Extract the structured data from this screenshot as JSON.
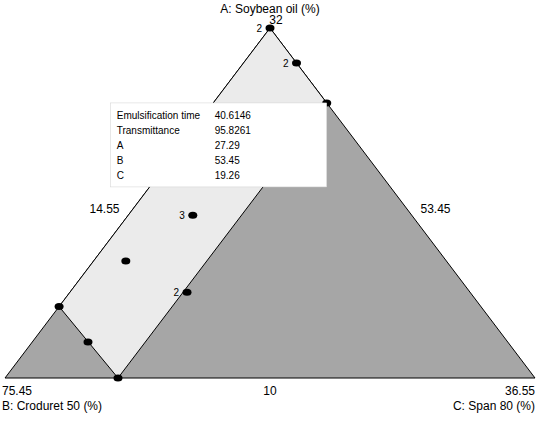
{
  "chart_data": {
    "type": "ternary",
    "axes": {
      "A": {
        "label": "A: Soybean oil (%)",
        "range": [
          10,
          32
        ]
      },
      "B": {
        "label": "B: Croduret 50 (%)",
        "range": [
          53.45,
          75.45
        ]
      },
      "C": {
        "label": "C: Span 80 (%)",
        "range": [
          14.55,
          36.55
        ]
      }
    },
    "regions": [
      {
        "color": "#a6a6a6",
        "vertices": [
          {
            "A": 32,
            "B": 53.45,
            "C": 14.55
          },
          {
            "A": 10,
            "B": 75.45,
            "C": 14.55
          },
          {
            "A": 10,
            "B": 53.45,
            "C": 36.55
          }
        ]
      },
      {
        "color": "#ebebeb",
        "vertices": [
          {
            "A": 32,
            "B": 53.45,
            "C": 14.55
          },
          {
            "A": 27.29,
            "B": 53.45,
            "C": 19.26
          },
          {
            "A": 10,
            "B": 70.76,
            "C": 19.24
          },
          {
            "A": 14.49,
            "B": 70.96,
            "C": 14.55
          }
        ]
      }
    ],
    "points": [
      {
        "A": 32,
        "B": 53.45,
        "C": 14.55,
        "replicates": 2
      },
      {
        "A": 29.8,
        "B": 53.45,
        "C": 16.75,
        "replicates": 2
      },
      {
        "A": 27.29,
        "B": 53.45,
        "C": 19.26,
        "replicates": 1
      },
      {
        "A": 20.23,
        "B": 62.54,
        "C": 17.23,
        "replicates": 3
      },
      {
        "A": 17.35,
        "B": 66.76,
        "C": 15.89,
        "replicates": 1
      },
      {
        "A": 15.39,
        "B": 65.2,
        "C": 19.41,
        "replicates": 2
      },
      {
        "A": 14.49,
        "B": 70.96,
        "C": 14.55,
        "replicates": 1
      },
      {
        "A": 12.27,
        "B": 70.87,
        "C": 16.86,
        "replicates": 1
      },
      {
        "A": 10,
        "B": 70.76,
        "C": 19.24,
        "replicates": 1
      }
    ],
    "annotation": [
      {
        "label": "Emulsification time",
        "value": 40.6146
      },
      {
        "label": "Transmittance",
        "value": 95.8261
      },
      {
        "label": "A",
        "value": 27.29
      },
      {
        "label": "B",
        "value": 53.45
      },
      {
        "label": "C",
        "value": 19.26
      }
    ]
  }
}
